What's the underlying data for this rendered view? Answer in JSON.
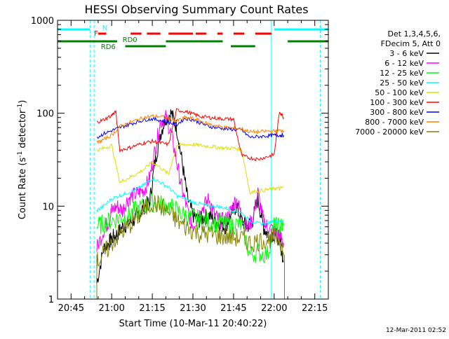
{
  "chart_data": {
    "type": "line",
    "title": "HESSI Observing Summary Count Rates",
    "xlabel": "Start Time (10-Mar-11 20:40:22)",
    "ylabel_main": "Count Rate (s",
    "ylabel_sup1": "-1",
    "ylabel_mid": " detector",
    "ylabel_sup2": "-1",
    "ylabel_end": ")",
    "y_scale": "log",
    "ylim": [
      1,
      1000
    ],
    "xlim_min": [
      0,
      100
    ],
    "x_ticks": [
      {
        "value": 5,
        "label": "20:45"
      },
      {
        "value": 20,
        "label": "21:00"
      },
      {
        "value": 35,
        "label": "21:15"
      },
      {
        "value": 50,
        "label": "21:30"
      },
      {
        "value": 65,
        "label": "21:45"
      },
      {
        "value": 80,
        "label": "22:00"
      },
      {
        "value": 95,
        "label": "22:15"
      }
    ],
    "y_ticks": [
      {
        "value": 1,
        "label": "1"
      },
      {
        "value": 10,
        "label": "10"
      },
      {
        "value": 100,
        "label": "100"
      },
      {
        "value": 1000,
        "label": "1000"
      }
    ],
    "timestamp": "12-Mar-2011 02:52",
    "legend_header": [
      "Det 1,3,4,5,6,",
      "FDecim 5, Att 0"
    ],
    "series": [
      {
        "name": "3 - 6 keV",
        "color": "#000000",
        "x": [
          14.5,
          17,
          19,
          20,
          22,
          24,
          26,
          28,
          30,
          32,
          34,
          36,
          38,
          40,
          42,
          44,
          46,
          48,
          50,
          52,
          54,
          56,
          58,
          60,
          62,
          64,
          66,
          68,
          70,
          72,
          74,
          76,
          77.5,
          80,
          82,
          83.5
        ],
        "values": [
          1.5,
          3.5,
          4,
          4.5,
          5,
          6,
          6.5,
          7,
          8,
          10,
          11,
          30,
          60,
          90,
          100,
          70,
          30,
          12,
          8,
          7,
          7.5,
          8,
          7,
          6.5,
          6,
          8,
          10,
          7,
          6,
          7,
          12,
          6,
          5,
          5,
          4.5,
          2.5
        ]
      },
      {
        "name": "6 - 12 keV",
        "color": "#ff00ff",
        "x": [
          14.5,
          17,
          19,
          20,
          22,
          24,
          26,
          28,
          30,
          32,
          34,
          36,
          38,
          40,
          42,
          44,
          46,
          48,
          50,
          52,
          54,
          56,
          58,
          60,
          62,
          64,
          66,
          68,
          70,
          72,
          74,
          76,
          77.5,
          80,
          82,
          83.5
        ],
        "values": [
          3.5,
          5.5,
          7,
          9,
          10,
          9,
          12,
          13,
          14,
          15,
          20,
          40,
          80,
          90,
          60,
          30,
          15,
          9,
          6,
          8,
          10,
          12,
          8,
          7,
          7,
          9,
          12,
          8,
          6,
          7,
          14,
          7,
          6,
          5.5,
          5,
          4
        ]
      },
      {
        "name": "12 - 25 keV",
        "color": "#00ff00",
        "x": [
          14.5,
          17,
          20,
          23,
          26,
          29,
          32,
          35,
          38,
          41,
          44,
          47,
          50,
          53,
          56,
          59,
          62,
          65,
          68,
          71,
          74,
          77.5,
          80,
          82,
          83.5
        ],
        "values": [
          6,
          6.5,
          7,
          7.5,
          8,
          9,
          10,
          11,
          10.5,
          10,
          9,
          8,
          7.5,
          7,
          6.8,
          6.6,
          6.5,
          6.4,
          6.2,
          3,
          3.2,
          3,
          6,
          6,
          6.2
        ]
      },
      {
        "name": "25 - 50 keV",
        "color": "#00ffff",
        "x": [
          14.5,
          17,
          20,
          23,
          26,
          29,
          32,
          35,
          38,
          41,
          44,
          47,
          50,
          53,
          56,
          59,
          62,
          65,
          68,
          71,
          74,
          77.5,
          80,
          82,
          83.5
        ],
        "values": [
          9,
          10,
          12,
          13,
          14,
          15,
          17,
          20,
          18,
          16,
          13,
          12,
          11,
          10.5,
          10,
          10,
          9.5,
          9,
          8.5,
          7,
          6.5,
          6.5,
          7,
          6.8,
          7
        ]
      },
      {
        "name": "50 - 100 keV",
        "color": "#dddd00",
        "x": [
          14.5,
          17,
          20,
          23,
          26,
          29,
          32,
          35,
          38,
          41,
          44,
          47,
          50,
          53,
          56,
          59,
          62,
          65,
          68,
          71,
          74,
          77.5,
          80,
          82,
          83.5
        ],
        "values": [
          40,
          42,
          45,
          18,
          20,
          22,
          25,
          30,
          26,
          22,
          45,
          46,
          46,
          45,
          44,
          43,
          42,
          42,
          41,
          14,
          14.5,
          15,
          15.5,
          15.5,
          16
        ]
      },
      {
        "name": "100 - 300 keV",
        "color": "#ff0000",
        "x": [
          14.5,
          17,
          20,
          21.5,
          23,
          26,
          29,
          32,
          35,
          38,
          41,
          44,
          47,
          50,
          53,
          56,
          59,
          62,
          65,
          68,
          71,
          74,
          77.5,
          80,
          82,
          83.5
        ],
        "values": [
          80,
          85,
          95,
          105,
          40,
          42,
          45,
          48,
          50,
          48,
          46,
          108,
          105,
          98,
          92,
          90,
          88,
          87,
          86,
          35,
          33,
          32,
          34,
          36,
          105,
          90
        ]
      },
      {
        "name": "300 - 800 keV",
        "color": "#0000ff",
        "x": [
          14.5,
          17,
          20,
          23,
          26,
          29,
          32,
          35,
          38,
          41,
          44,
          47,
          50,
          53,
          56,
          59,
          62,
          65,
          68,
          71,
          74,
          77.5,
          80,
          82,
          83.5
        ],
        "values": [
          55,
          60,
          65,
          70,
          75,
          80,
          85,
          87,
          84,
          80,
          75,
          88,
          85,
          78,
          72,
          70,
          68,
          67,
          66,
          55,
          56,
          57,
          58,
          58,
          58
        ]
      },
      {
        "name": "800 - 7000 keV",
        "color": "#ff8000",
        "x": [
          14.5,
          17,
          20,
          23,
          26,
          29,
          32,
          35,
          38,
          41,
          44,
          47,
          50,
          53,
          56,
          59,
          62,
          65,
          68,
          71,
          74,
          77.5,
          80,
          82,
          83.5
        ],
        "values": [
          48,
          52,
          58,
          72,
          78,
          84,
          90,
          93,
          92,
          88,
          82,
          90,
          88,
          82,
          76,
          73,
          70,
          69,
          68,
          63,
          63,
          64,
          64,
          65,
          65
        ]
      },
      {
        "name": "7000 - 20000 keV",
        "color": "#808000",
        "x": [
          14.5,
          17,
          20,
          23,
          26,
          29,
          32,
          35,
          38,
          41,
          44,
          47,
          50,
          53,
          56,
          59,
          62,
          65,
          68,
          71,
          74,
          77.5,
          80,
          82,
          83.5
        ],
        "values": [
          2.5,
          3,
          4,
          5,
          6,
          7.5,
          9,
          11,
          10,
          8.5,
          7,
          6,
          5.5,
          5,
          5,
          4.8,
          4.7,
          4.6,
          4.5,
          4,
          4.2,
          4.4,
          4.5,
          4.5,
          3
        ]
      }
    ],
    "annotations": {
      "flags": [
        {
          "label": "N",
          "color": "#00ffff"
        },
        {
          "label": "F",
          "color": "#ff0000"
        },
        {
          "label": "RD0",
          "color": "#008000"
        },
        {
          "label": "RD6",
          "color": "#008000"
        }
      ],
      "night_segments": [
        [
          0,
          12
        ],
        [
          80,
          100
        ]
      ],
      "flare_segments": [
        [
          15,
          18
        ],
        [
          27,
          31
        ],
        [
          33,
          38
        ],
        [
          41,
          50
        ],
        [
          51,
          55
        ],
        [
          59,
          61
        ],
        [
          65,
          69
        ],
        [
          73,
          79
        ]
      ],
      "rd_segments": [
        [
          0,
          22
        ],
        [
          25,
          40
        ],
        [
          40,
          61
        ],
        [
          64,
          73
        ],
        [
          85,
          100
        ]
      ],
      "saa_lines": [
        13.5,
        79
      ],
      "night_lines": [
        12,
        97
      ],
      "data_start": 14.5,
      "data_end": 83.8
    }
  }
}
